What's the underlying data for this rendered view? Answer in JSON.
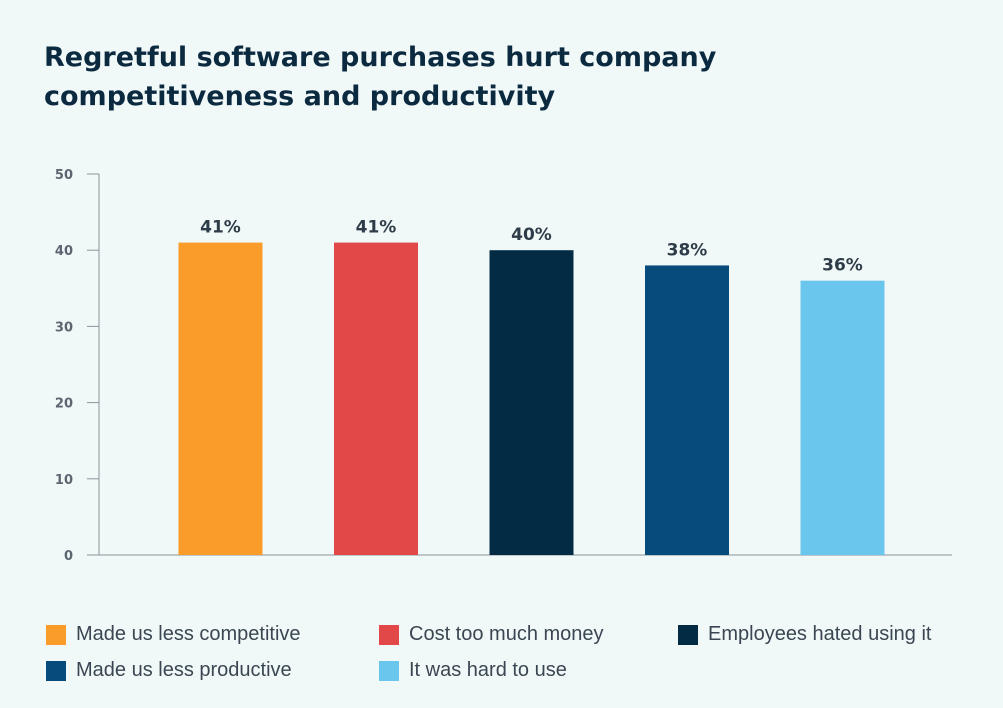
{
  "chart_data": {
    "type": "bar",
    "title": "Regretful software purchases hurt company competitiveness and productivity",
    "categories": [
      "Made us less competitive",
      "Cost too much money",
      "Employees hated using it",
      "Made us less productive",
      "It was hard to use"
    ],
    "values": [
      41,
      41,
      40,
      38,
      36
    ],
    "data_labels": [
      "41%",
      "41%",
      "40%",
      "38%",
      "36%"
    ],
    "colors": [
      "#f99c29",
      "#e34848",
      "#032c44",
      "#064b7b",
      "#6ac6ec"
    ],
    "ylim": [
      0,
      50
    ],
    "yticks": [
      0,
      10,
      20,
      30,
      40,
      50
    ],
    "xlabel": "",
    "ylabel": "",
    "grid": false,
    "legend": "bottom"
  }
}
